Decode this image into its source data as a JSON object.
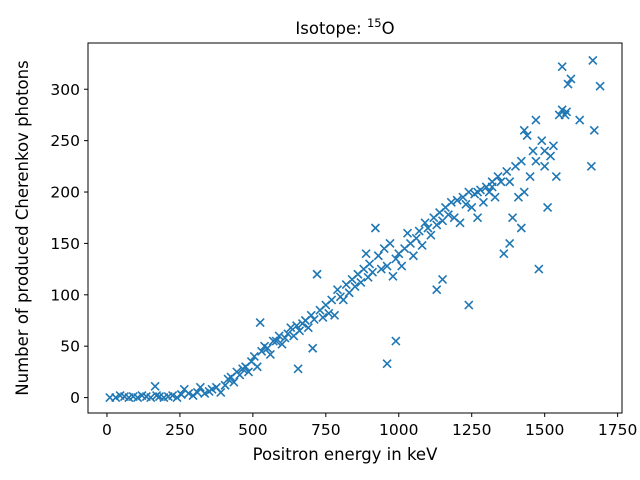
{
  "chart_data": {
    "type": "scatter",
    "title_prefix": "Isotope: ",
    "title_superscript": "15",
    "title_suffix": "O",
    "xlabel": "Positron energy in keV",
    "ylabel": "Number of produced Cherenkov photons",
    "xlim": [
      -65,
      1765
    ],
    "ylim": [
      -15,
      345
    ],
    "xticks": [
      0,
      250,
      500,
      750,
      1000,
      1250,
      1500,
      1750
    ],
    "yticks": [
      0,
      50,
      100,
      150,
      200,
      250,
      300
    ],
    "marker": "x",
    "series": [
      {
        "color": "#1f77b4",
        "x": [
          10,
          30,
          45,
          60,
          75,
          90,
          105,
          120,
          135,
          150,
          165,
          170,
          180,
          195,
          210,
          225,
          240,
          255,
          265,
          280,
          295,
          310,
          320,
          335,
          350,
          360,
          375,
          390,
          405,
          415,
          425,
          435,
          445,
          455,
          465,
          475,
          485,
          495,
          505,
          515,
          525,
          530,
          540,
          550,
          560,
          570,
          580,
          590,
          600,
          610,
          620,
          630,
          640,
          650,
          655,
          660,
          670,
          680,
          690,
          700,
          705,
          710,
          720,
          730,
          740,
          750,
          760,
          770,
          780,
          790,
          800,
          810,
          820,
          830,
          840,
          850,
          860,
          870,
          880,
          888,
          895,
          900,
          910,
          920,
          930,
          940,
          950,
          960,
          970,
          980,
          990,
          1000,
          1010,
          1020,
          1030,
          1040,
          1050,
          1060,
          1070,
          1080,
          1090,
          1100,
          1110,
          1120,
          1130,
          1140,
          1150,
          1160,
          1170,
          1180,
          1190,
          1200,
          1210,
          1220,
          1230,
          1240,
          1250,
          1260,
          1270,
          1280,
          1290,
          1300,
          1310,
          1320,
          1330,
          1340,
          1350,
          1360,
          1370,
          1380,
          1390,
          1400,
          1410,
          1420,
          1430,
          1440,
          1450,
          1460,
          1470,
          1480,
          1490,
          1500,
          1510,
          1520,
          1530,
          1540,
          1550,
          1560,
          1570,
          1580,
          1590,
          1620,
          1660,
          1665,
          1670,
          1690,
          1560,
          1575,
          1470,
          1500,
          1380,
          1430,
          1270,
          1240,
          960,
          990,
          1320,
          1130,
          1150,
          1420
        ],
        "y": [
          0,
          0,
          2,
          1,
          0,
          1,
          0,
          2,
          1,
          0,
          11,
          2,
          1,
          0,
          1,
          2,
          0,
          3,
          8,
          4,
          2,
          5,
          10,
          4,
          6,
          8,
          10,
          5,
          12,
          18,
          20,
          15,
          25,
          22,
          28,
          30,
          25,
          35,
          40,
          30,
          73,
          45,
          50,
          48,
          42,
          55,
          55,
          60,
          52,
          58,
          62,
          68,
          60,
          70,
          28,
          65,
          72,
          75,
          68,
          80,
          48,
          76,
          120,
          85,
          78,
          90,
          82,
          95,
          80,
          105,
          98,
          95,
          110,
          102,
          115,
          108,
          120,
          112,
          125,
          140,
          117,
          130,
          122,
          165,
          138,
          125,
          145,
          128,
          150,
          118,
          135,
          140,
          128,
          145,
          160,
          150,
          138,
          155,
          162,
          148,
          170,
          165,
          158,
          175,
          168,
          180,
          172,
          185,
          178,
          190,
          175,
          192,
          170,
          195,
          188,
          200,
          185,
          198,
          175,
          202,
          190,
          205,
          200,
          210,
          195,
          215,
          210,
          140,
          220,
          210,
          175,
          225,
          195,
          230,
          200,
          255,
          215,
          240,
          230,
          125,
          250,
          225,
          185,
          235,
          245,
          215,
          275,
          280,
          275,
          305,
          310,
          270,
          225,
          328,
          260,
          303,
          322,
          278,
          270,
          240,
          150,
          260,
          200,
          90,
          33,
          55,
          205,
          105,
          115,
          165
        ],
        "points_note": ""
      }
    ]
  }
}
